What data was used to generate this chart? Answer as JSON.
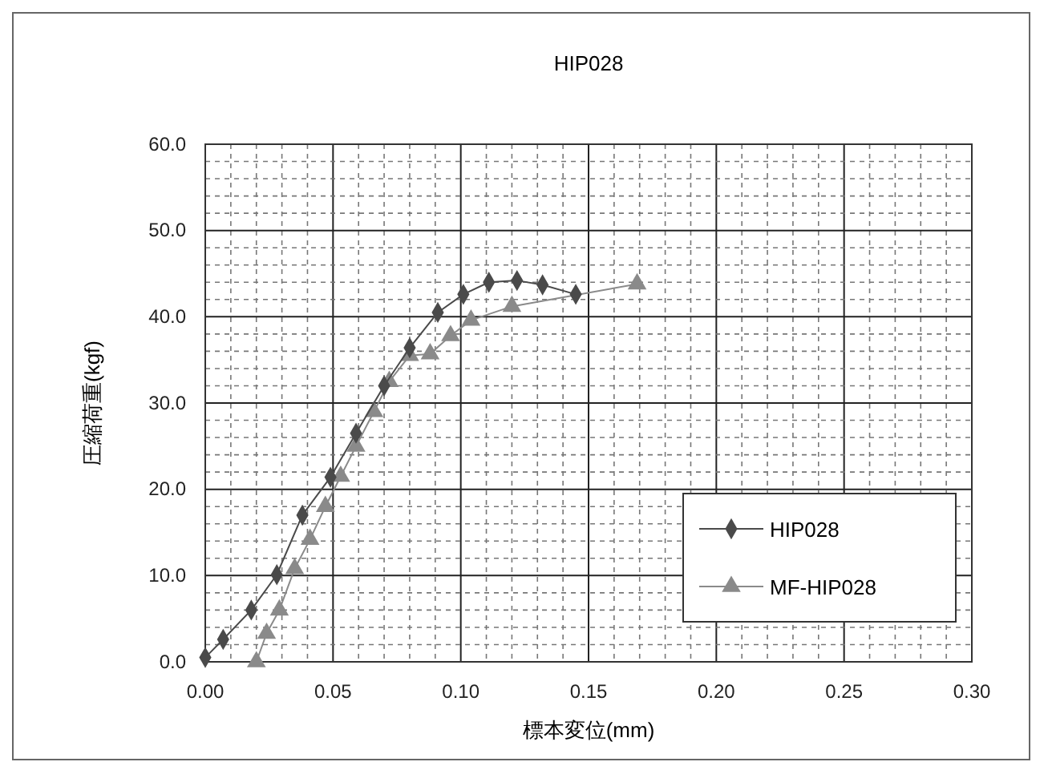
{
  "chart_data": {
    "type": "line",
    "title": "HIP028",
    "xlabel": "標本変位(mm)",
    "ylabel": "圧縮荷重(kgf)",
    "xlim": [
      0,
      0.3
    ],
    "xticks": [
      {
        "value": 0,
        "label": "0.00"
      },
      {
        "value": 0.05,
        "label": "0.05"
      },
      {
        "value": 0.1,
        "label": "0.10"
      },
      {
        "value": 0.15,
        "label": "0.15"
      },
      {
        "value": 0.2,
        "label": "0.20"
      },
      {
        "value": 0.25,
        "label": "0.25"
      },
      {
        "value": 0.3,
        "label": "0.30"
      }
    ],
    "ylim": [
      0,
      60
    ],
    "yticks": [
      {
        "value": 0,
        "label": "0.0"
      },
      {
        "value": 10,
        "label": "10.0"
      },
      {
        "value": 20,
        "label": "20.0"
      },
      {
        "value": 30,
        "label": "30.0"
      },
      {
        "value": 40,
        "label": "40.0"
      },
      {
        "value": 50,
        "label": "50.0"
      },
      {
        "value": 60,
        "label": "60.0"
      }
    ],
    "grid": true,
    "legend": "bottom right",
    "series": [
      {
        "name": "HIP028",
        "color": "#4a4a4a",
        "marker": "diamond",
        "x": [
          0,
          0.007,
          0.018,
          0.028,
          0.038,
          0.049,
          0.059,
          0.07,
          0.08,
          0.091,
          0.101,
          0.111,
          0.122,
          0.132,
          0.145
        ],
        "values": [
          0.5,
          2.6,
          6,
          10.1,
          17,
          21.4,
          26.5,
          32,
          36.4,
          40.5,
          42.6,
          44,
          44.2,
          43.7,
          42.6
        ]
      },
      {
        "name": "MF-HIP028",
        "color": "#8a8a8a",
        "marker": "triangle",
        "x": [
          0.02,
          0.024,
          0.029,
          0.035,
          0.041,
          0.047,
          0.053,
          0.059,
          0.066,
          0.072,
          0.08,
          0.088,
          0.096,
          0.104,
          0.12,
          0.169
        ],
        "values": [
          0,
          3.3,
          6,
          10.8,
          14.2,
          18,
          21.5,
          25,
          29,
          32.5,
          35.5,
          35.7,
          37.8,
          39.6,
          41.2,
          43.8
        ]
      }
    ]
  }
}
